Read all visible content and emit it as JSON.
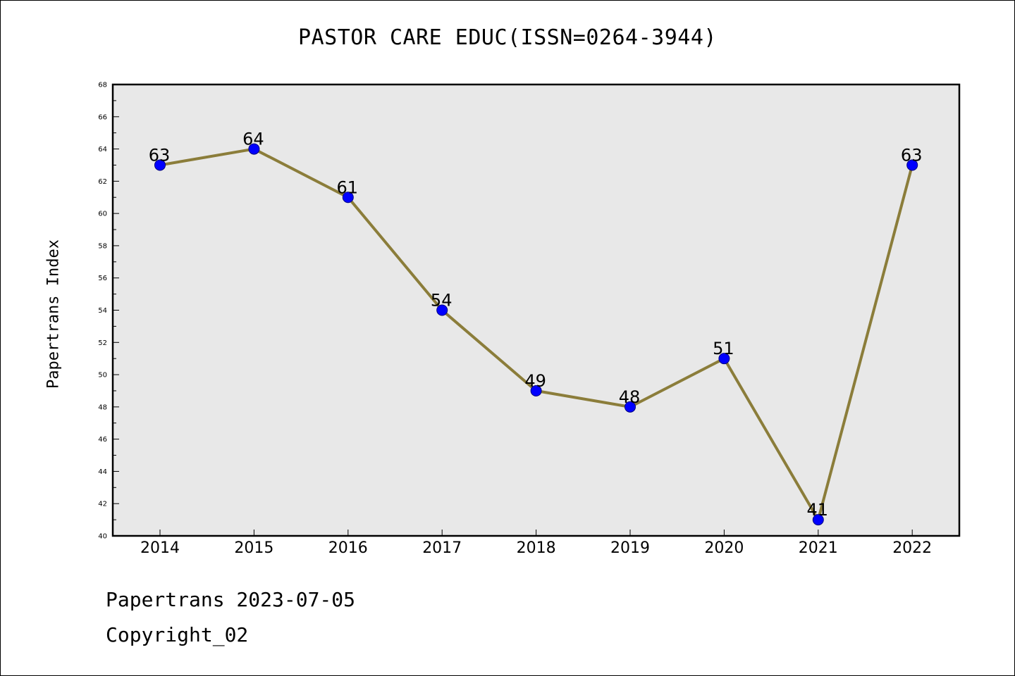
{
  "title": "PASTOR CARE EDUC(ISSN=0264-3944)",
  "footer": {
    "line1": "Papertrans 2023-07-05",
    "line2": "Copyright_02"
  },
  "colors": {
    "plot_background": "#e8e8e8",
    "line": "#8b7d3a",
    "marker": "#0000ff",
    "marker_edge": "#000080"
  },
  "chart_data": {
    "type": "line",
    "title": "PASTOR CARE EDUC(ISSN=0264-3944)",
    "xlabel": "",
    "ylabel": "Papertrans Index",
    "categories": [
      "2014",
      "2015",
      "2016",
      "2017",
      "2018",
      "2019",
      "2020",
      "2021",
      "2022"
    ],
    "series": [
      {
        "values": [
          63,
          64,
          61,
          54,
          49,
          48,
          51,
          41,
          63
        ]
      }
    ],
    "ylim": [
      40,
      68
    ],
    "yticks": [
      40,
      42,
      44,
      46,
      48,
      50,
      52,
      54,
      56,
      58,
      60,
      62,
      64,
      66,
      68
    ],
    "grid": false,
    "data_labels": true,
    "legend": "none"
  }
}
